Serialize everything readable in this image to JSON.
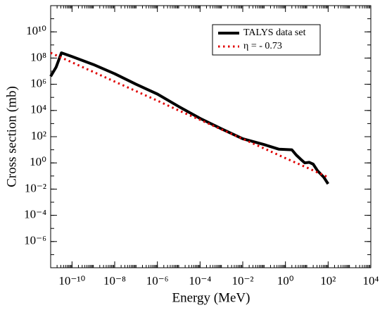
{
  "chart_data": {
    "type": "line",
    "x_label": "Energy (MeV)",
    "y_label": "Cross section (mb)",
    "xlog": true,
    "ylog": true,
    "xlim": [
      1e-11,
      10000
    ],
    "ylim": [
      1e-08,
      1000000000000.0
    ],
    "xticks": [
      {
        "value": 1e-10,
        "label": "10⁻¹⁰"
      },
      {
        "value": 1e-08,
        "label": "10⁻⁸"
      },
      {
        "value": 1e-06,
        "label": "10⁻⁶"
      },
      {
        "value": 0.0001,
        "label": "10⁻⁴"
      },
      {
        "value": 0.01,
        "label": "10⁻²"
      },
      {
        "value": 1,
        "label": "10⁰"
      },
      {
        "value": 100,
        "label": "10²"
      },
      {
        "value": 10000,
        "label": "10⁴"
      }
    ],
    "yticks": [
      {
        "value": 1e-06,
        "label": "10⁻⁶"
      },
      {
        "value": 0.0001,
        "label": "10⁻⁴"
      },
      {
        "value": 0.01,
        "label": "10⁻²"
      },
      {
        "value": 1,
        "label": "10⁰"
      },
      {
        "value": 100,
        "label": "10²"
      },
      {
        "value": 10000,
        "label": "10⁴"
      },
      {
        "value": 1000000,
        "label": "10⁶"
      },
      {
        "value": 100000000,
        "label": "10⁸"
      },
      {
        "value": 10000000000,
        "label": "10¹⁰"
      }
    ],
    "legend": "upper right",
    "series": [
      {
        "name": "TALYS data set",
        "color": "#000000",
        "style": "solid",
        "x": [
          1e-11,
          1.8e-11,
          3.2e-11,
          1e-10,
          1e-09,
          1e-08,
          1e-07,
          1e-06,
          1e-05,
          0.0001,
          0.001,
          0.01,
          0.1,
          0.5,
          2,
          3.2,
          5,
          8,
          13,
          20,
          32,
          63,
          100
        ],
        "values": [
          4000000,
          20000000,
          250000000,
          130000000,
          32000000,
          6300000,
          1000000,
          180000,
          20000,
          2500,
          400,
          70,
          25,
          11,
          10,
          4,
          2,
          1,
          1.1,
          0.8,
          0.25,
          0.08,
          0.025
        ]
      },
      {
        "name": "η = - 0.73",
        "color": "#e00000",
        "style": "dotted",
        "x": [
          1e-11,
          1e-10,
          1e-09,
          1e-08,
          1e-07,
          1e-06,
          1e-05,
          0.0001,
          0.001,
          0.01,
          0.1,
          1,
          10,
          100
        ],
        "values": [
          250000000,
          47000000,
          8700000,
          1600000,
          300000,
          56000,
          10000,
          1950,
          360,
          68,
          12.6,
          2.3,
          0.44,
          0.081
        ]
      }
    ]
  }
}
